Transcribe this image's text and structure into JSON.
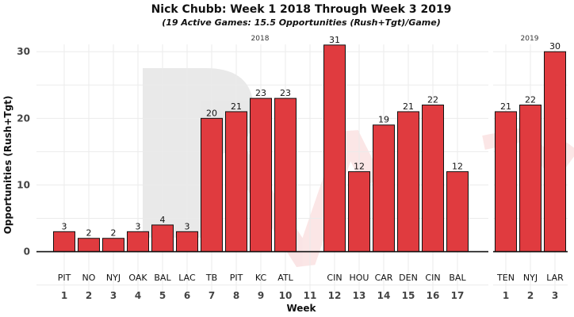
{
  "title": "Nick Chubb: Week 1 2018 Through Week 3 2019",
  "subtitle": "(19 Active Games: 15.5 Opportunities (Rush+Tgt)/Game)",
  "chart_data": {
    "type": "bar",
    "title": "Nick Chubb: Week 1 2018 Through Week 3 2019",
    "subtitle": "(19 Active Games: 15.5 Opportunities (Rush+Tgt)/Game)",
    "xlabel": "Week",
    "ylabel": "Opportunities (Rush+Tgt)",
    "ylim": [
      -6,
      33
    ],
    "yticks": [
      0,
      10,
      20,
      30
    ],
    "grid": true,
    "legend": "none",
    "bar_color": "#e03b3f",
    "panels": [
      {
        "label": "2018",
        "weeks": [
          1,
          2,
          3,
          4,
          5,
          6,
          7,
          8,
          9,
          10,
          11,
          12,
          13,
          14,
          15,
          16,
          17
        ],
        "opponents": [
          "PIT",
          "NO",
          "NYJ",
          "OAK",
          "BAL",
          "LAC",
          "TB",
          "PIT",
          "KC",
          "ATL",
          "",
          "CIN",
          "HOU",
          "CAR",
          "DEN",
          "CIN",
          "BAL"
        ],
        "values": [
          3,
          2,
          2,
          3,
          4,
          3,
          20,
          21,
          23,
          23,
          null,
          31,
          12,
          19,
          21,
          22,
          12
        ]
      },
      {
        "label": "2019",
        "weeks": [
          1,
          2,
          3
        ],
        "opponents": [
          "TEN",
          "NYJ",
          "LAR"
        ],
        "values": [
          21,
          22,
          30
        ]
      }
    ]
  }
}
